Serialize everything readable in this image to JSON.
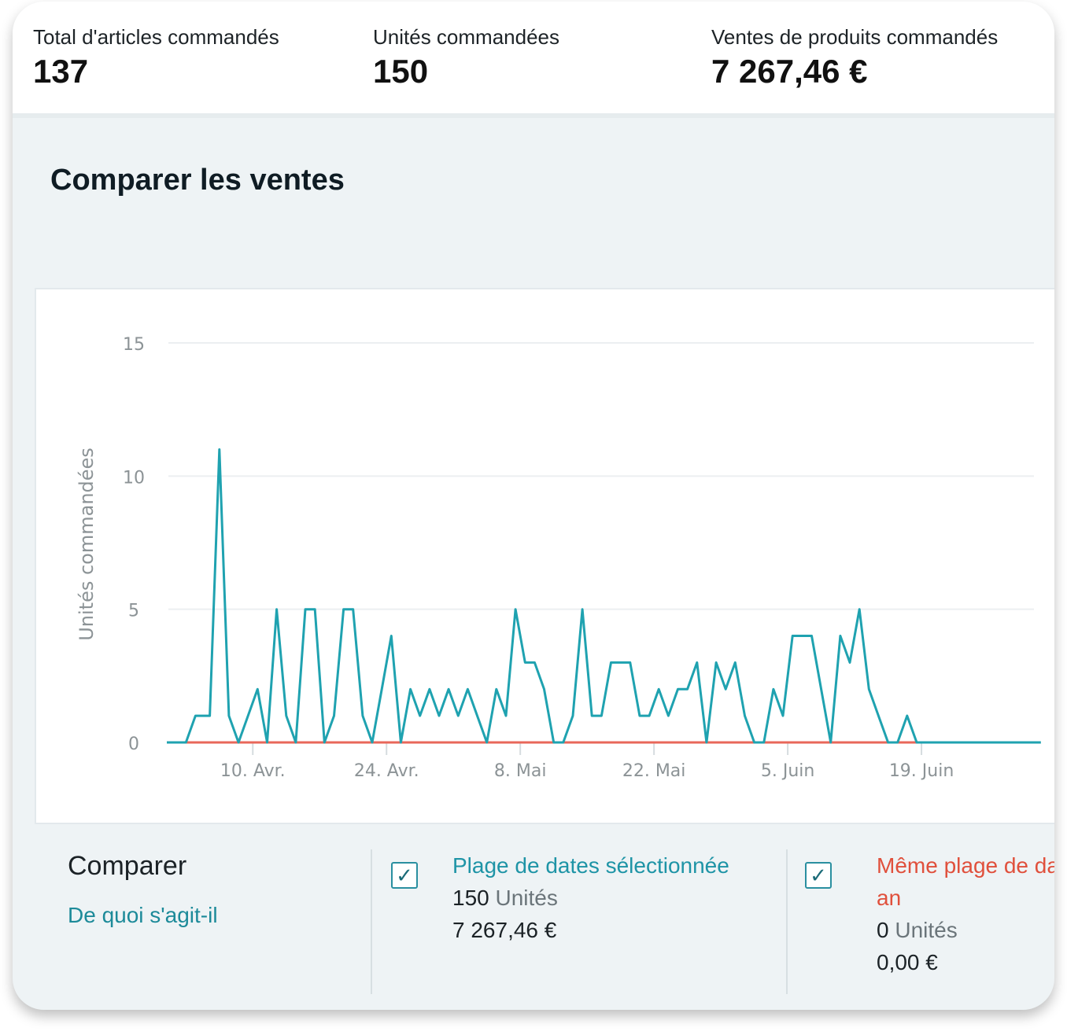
{
  "metrics": [
    {
      "label": "Total d'articles commandés",
      "value": "137"
    },
    {
      "label": "Unités commandées",
      "value": "150"
    },
    {
      "label": "Ventes de produits commandés",
      "value": "7 267,46 €"
    }
  ],
  "section_title": "Comparer les ventes",
  "compare": {
    "title": "Comparer",
    "link": "De quoi s'agit-il",
    "selected": {
      "name": "Plage de dates sélectionnée",
      "units_value": "150",
      "units_label": "Unités",
      "amount": "7 267,46 €",
      "checked": true,
      "checkmark": "✓"
    },
    "previous": {
      "name_line1": "Même plage de da",
      "name_line2": "an",
      "units_value": "0",
      "units_label": "Unités",
      "amount": "0,00 €",
      "checked": true,
      "checkmark": "✓"
    }
  },
  "chart_data": {
    "type": "line",
    "ylabel": "Unités commandées",
    "ylim": [
      0,
      15
    ],
    "yticks": [
      0,
      5,
      10,
      15
    ],
    "xticks": [
      {
        "label": "10. Avr.",
        "day": 9
      },
      {
        "label": "24. Avr.",
        "day": 23
      },
      {
        "label": "8. Mai",
        "day": 37
      },
      {
        "label": "22. Mai",
        "day": 51
      },
      {
        "label": "5. Juin",
        "day": 65
      },
      {
        "label": "19. Juin",
        "day": 79
      }
    ],
    "series": [
      {
        "color": "#1fa2b0",
        "points": [
          [
            0,
            0
          ],
          [
            2,
            0
          ],
          [
            3,
            1
          ],
          [
            4,
            1
          ],
          [
            4.5,
            1
          ],
          [
            5.5,
            11
          ],
          [
            6.5,
            1
          ],
          [
            7.5,
            0
          ],
          [
            8.5,
            1
          ],
          [
            9.5,
            2
          ],
          [
            10.5,
            0
          ],
          [
            11.5,
            5
          ],
          [
            12.5,
            1
          ],
          [
            13.5,
            0
          ],
          [
            14.5,
            5
          ],
          [
            15.5,
            5
          ],
          [
            16.5,
            0
          ],
          [
            17.5,
            1
          ],
          [
            18.5,
            5
          ],
          [
            19.5,
            5
          ],
          [
            20.5,
            1
          ],
          [
            21.5,
            0
          ],
          [
            22.5,
            2
          ],
          [
            23.5,
            4
          ],
          [
            24.5,
            0
          ],
          [
            25.5,
            2
          ],
          [
            26.5,
            1
          ],
          [
            27.5,
            2
          ],
          [
            28.5,
            1
          ],
          [
            29.5,
            2
          ],
          [
            30.5,
            1
          ],
          [
            31.5,
            2
          ],
          [
            32.5,
            1
          ],
          [
            33.5,
            0
          ],
          [
            34.5,
            2
          ],
          [
            35.5,
            1
          ],
          [
            36.5,
            5
          ],
          [
            37.5,
            3
          ],
          [
            38.5,
            3
          ],
          [
            39.5,
            2
          ],
          [
            40.5,
            0
          ],
          [
            41.5,
            0
          ],
          [
            42.5,
            1
          ],
          [
            43.5,
            5
          ],
          [
            44.5,
            1
          ],
          [
            45.5,
            1
          ],
          [
            46.5,
            3
          ],
          [
            47.5,
            3
          ],
          [
            48.5,
            3
          ],
          [
            49.5,
            1
          ],
          [
            50.5,
            1
          ],
          [
            51.5,
            2
          ],
          [
            52.5,
            1
          ],
          [
            53.5,
            2
          ],
          [
            54.5,
            2
          ],
          [
            55.5,
            3
          ],
          [
            56.5,
            0
          ],
          [
            57.5,
            3
          ],
          [
            58.5,
            2
          ],
          [
            59.5,
            3
          ],
          [
            60.5,
            1
          ],
          [
            61.5,
            0
          ],
          [
            62.5,
            0
          ],
          [
            63.5,
            2
          ],
          [
            64.5,
            1
          ],
          [
            65.5,
            4
          ],
          [
            66.5,
            4
          ],
          [
            67.5,
            4
          ],
          [
            68.5,
            2
          ],
          [
            69.5,
            0
          ],
          [
            70.5,
            4
          ],
          [
            71.5,
            3
          ],
          [
            72.5,
            5
          ],
          [
            73.5,
            2
          ],
          [
            74.5,
            1
          ],
          [
            75.5,
            0
          ],
          [
            76.5,
            0
          ],
          [
            77.5,
            1
          ],
          [
            78.5,
            0
          ],
          [
            91.5,
            0
          ]
        ]
      },
      {
        "color": "#e8675a",
        "points": [
          [
            0,
            0
          ],
          [
            78.5,
            0
          ]
        ]
      }
    ]
  }
}
